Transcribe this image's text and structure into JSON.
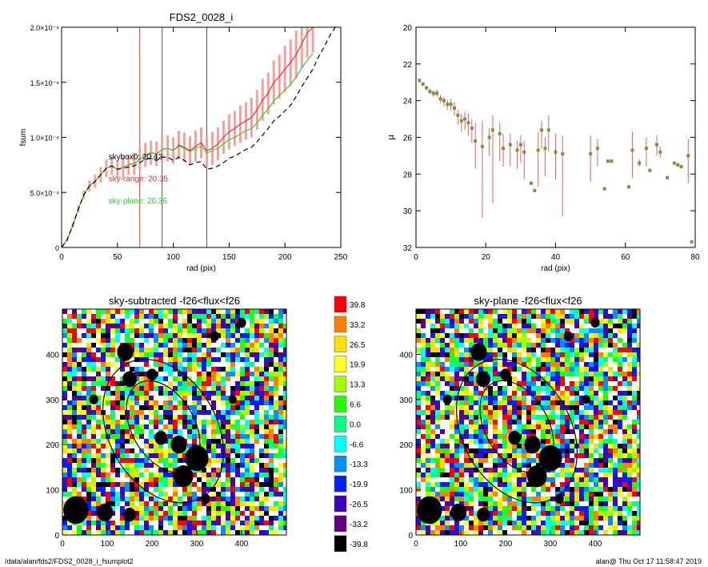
{
  "footer": {
    "path": "/data/alan/fds2/FDS2_0028_i_fsumplot2",
    "user_time": "alan@  Thu Oct 17 11:58:47 2019"
  },
  "chart_data": [
    {
      "type": "line",
      "title": "FDS2_0028_i",
      "xlabel": "rad (pix)",
      "ylabel": "fsum",
      "xlim": [
        0,
        250
      ],
      "ylim": [
        0,
        2e-08
      ],
      "xticks": [
        "0",
        "50",
        "100",
        "150",
        "200",
        "250"
      ],
      "yticks": [
        {
          "value": 0,
          "label": "0"
        },
        {
          "value": 5e-09,
          "label": "5.0×10⁻⁹"
        },
        {
          "value": 1e-08,
          "label": "1.0×10⁻⁸"
        },
        {
          "value": 1.5e-08,
          "label": "1.5×10⁻⁸"
        },
        {
          "value": 2e-08,
          "label": "2.0×10⁻⁸"
        }
      ],
      "vlines": [
        {
          "x": 70,
          "color": "#e83030"
        },
        {
          "x": 90,
          "color": "#555555"
        },
        {
          "x": 130,
          "color": "#555555"
        }
      ],
      "annotations": [
        {
          "text": "skybox0: 20.42",
          "color": "#000000",
          "x": 42,
          "y": 8e-09
        },
        {
          "text": "sky-range: 20.35",
          "color": "#e83030",
          "x": 42,
          "y": 6e-09
        },
        {
          "text": "sky-plane: 20.36",
          "color": "#22dd22",
          "x": 42,
          "y": 4e-09
        }
      ],
      "series": [
        {
          "color": "#e83030",
          "x": [
            0,
            5,
            10,
            15,
            20,
            25,
            30,
            35,
            40,
            45,
            50,
            55,
            60,
            65,
            70,
            75,
            80,
            85,
            90,
            95,
            100,
            105,
            110,
            115,
            120,
            125,
            130,
            135,
            140,
            145,
            150,
            155,
            160,
            165,
            170,
            175,
            180,
            185,
            190,
            195,
            200,
            205,
            210,
            215,
            220,
            225
          ],
          "y": [
            0,
            7e-10,
            2e-09,
            3.5e-09,
            4.8e-09,
            5.6e-09,
            6e-09,
            6.6e-09,
            7.2e-09,
            7.4e-09,
            7.1e-09,
            7.3e-09,
            7.5e-09,
            7.6e-09,
            8e-09,
            8.4e-09,
            8.6e-09,
            8.5e-09,
            8.9e-09,
            9e-09,
            8.8e-09,
            9.3e-09,
            9.1e-09,
            8.8e-09,
            9.2e-09,
            9.5e-09,
            8.8e-09,
            9e-09,
            9.4e-09,
            1e-08,
            1.05e-08,
            1.08e-08,
            1.12e-08,
            1.15e-08,
            1.18e-08,
            1.25e-08,
            1.34e-08,
            1.4e-08,
            1.5e-08,
            1.55e-08,
            1.62e-08,
            1.68e-08,
            1.75e-08,
            1.85e-08,
            1.95e-08,
            2e-08
          ],
          "err": [
            0,
            1e-10,
            2e-10,
            3e-10,
            4e-10,
            5e-10,
            6e-10,
            7e-10,
            8e-10,
            8e-10,
            8e-10,
            9e-10,
            9e-10,
            1e-09,
            1e-09,
            1.1e-09,
            1.1e-09,
            1.1e-09,
            1.2e-09,
            1.2e-09,
            1.2e-09,
            1.3e-09,
            1.3e-09,
            1.3e-09,
            1.4e-09,
            1.4e-09,
            1.4e-09,
            1.5e-09,
            1.5e-09,
            1.5e-09,
            1.6e-09,
            1.6e-09,
            1.7e-09,
            1.7e-09,
            1.8e-09,
            1.8e-09,
            1.9e-09,
            1.9e-09,
            2e-09,
            2e-09,
            2.1e-09,
            2.1e-09,
            2.2e-09,
            2.2e-09,
            2.3e-09,
            2.3e-09
          ]
        },
        {
          "color": "#22dd22",
          "x": [
            0,
            5,
            10,
            15,
            20,
            25,
            30,
            35,
            40,
            45,
            50,
            55,
            60,
            65,
            70,
            75,
            80,
            85,
            90,
            95,
            100,
            105,
            110,
            115,
            120,
            125,
            130,
            135,
            140,
            145,
            150,
            155,
            160,
            165,
            170,
            175,
            180,
            185,
            190,
            195,
            200,
            205,
            210,
            215,
            220,
            225
          ],
          "y": [
            0,
            7e-10,
            2e-09,
            3.5e-09,
            4.8e-09,
            5.6e-09,
            6e-09,
            6.6e-09,
            7.2e-09,
            7.4e-09,
            7.1e-09,
            7.3e-09,
            7.5e-09,
            7.6e-09,
            8e-09,
            8.4e-09,
            8.6e-09,
            8.5e-09,
            8.9e-09,
            9e-09,
            8.8e-09,
            9.2e-09,
            9e-09,
            8.7e-09,
            9e-09,
            9.2e-09,
            8.6e-09,
            8.8e-09,
            9e-09,
            9.4e-09,
            9.8e-09,
            1e-08,
            1.03e-08,
            1.06e-08,
            1.08e-08,
            1.13e-08,
            1.2e-08,
            1.26e-08,
            1.33e-08,
            1.38e-08,
            1.43e-08,
            1.48e-08,
            1.55e-08,
            1.63e-08,
            1.7e-08,
            1.76e-08
          ]
        },
        {
          "color": "#000000",
          "dashed": true,
          "x": [
            0,
            5,
            10,
            15,
            20,
            25,
            30,
            35,
            40,
            45,
            50,
            55,
            60,
            65,
            70,
            75,
            80,
            85,
            90,
            95,
            100,
            105,
            110,
            115,
            120,
            125,
            130,
            135,
            140,
            145,
            150,
            155,
            160,
            165,
            170,
            175,
            180,
            185,
            190,
            195,
            200,
            205,
            210,
            215,
            220,
            225,
            230,
            235,
            240,
            245
          ],
          "y": [
            0,
            7e-10,
            2e-09,
            3.5e-09,
            4.8e-09,
            5.6e-09,
            6e-09,
            6.6e-09,
            7.2e-09,
            7.4e-09,
            7.1e-09,
            7.2e-09,
            7.3e-09,
            7.4e-09,
            7.7e-09,
            8e-09,
            8.1e-09,
            7.9e-09,
            8.2e-09,
            8.2e-09,
            7.9e-09,
            8.2e-09,
            7.9e-09,
            7.5e-09,
            7.7e-09,
            7.8e-09,
            7.1e-09,
            7.2e-09,
            7.4e-09,
            7.7e-09,
            8.1e-09,
            8.3e-09,
            8.6e-09,
            8.9e-09,
            9.1e-09,
            9.6e-09,
            1.02e-08,
            1.08e-08,
            1.15e-08,
            1.19e-08,
            1.24e-08,
            1.29e-08,
            1.37e-08,
            1.46e-08,
            1.54e-08,
            1.62e-08,
            1.73e-08,
            1.82e-08,
            1.92e-08,
            2e-08
          ]
        }
      ]
    },
    {
      "type": "scatter",
      "xlabel": "rad (pix)",
      "ylabel": "μ",
      "xlim": [
        0,
        80
      ],
      "ylim": [
        32,
        20
      ],
      "xticks": [
        "0",
        "20",
        "40",
        "60",
        "80"
      ],
      "yticks": [
        "20",
        "22",
        "24",
        "26",
        "28",
        "30",
        "32"
      ],
      "points": [
        {
          "x": 1,
          "y": 22.9,
          "lo": 0.1,
          "hi": 0.1
        },
        {
          "x": 2,
          "y": 23.1,
          "lo": 0.1,
          "hi": 0.1
        },
        {
          "x": 3,
          "y": 23.3,
          "lo": 0.1,
          "hi": 0.15
        },
        {
          "x": 4,
          "y": 23.5,
          "lo": 0.15,
          "hi": 0.15
        },
        {
          "x": 5,
          "y": 23.6,
          "lo": 0.15,
          "hi": 0.2
        },
        {
          "x": 6,
          "y": 23.6,
          "lo": 0.2,
          "hi": 0.2
        },
        {
          "x": 7,
          "y": 23.9,
          "lo": 0.2,
          "hi": 0.25
        },
        {
          "x": 8,
          "y": 24.0,
          "lo": 0.2,
          "hi": 0.3
        },
        {
          "x": 9,
          "y": 24.2,
          "lo": 0.25,
          "hi": 0.3
        },
        {
          "x": 10,
          "y": 24.2,
          "lo": 0.3,
          "hi": 0.35
        },
        {
          "x": 11,
          "y": 24.4,
          "lo": 0.3,
          "hi": 0.4
        },
        {
          "x": 12,
          "y": 24.8,
          "lo": 0.3,
          "hi": 0.5
        },
        {
          "x": 13,
          "y": 25.1,
          "lo": 0.4,
          "hi": 0.6
        },
        {
          "x": 14,
          "y": 25.0,
          "lo": 0.4,
          "hi": 0.6
        },
        {
          "x": 15,
          "y": 25.2,
          "lo": 0.5,
          "hi": 0.7
        },
        {
          "x": 16,
          "y": 25.5,
          "lo": 0.5,
          "hi": 0.8
        },
        {
          "x": 17,
          "y": 26.2,
          "lo": 1.0,
          "hi": 1.5
        },
        {
          "x": 19,
          "y": 26.5,
          "lo": 1.4,
          "hi": 3.9
        },
        {
          "x": 21,
          "y": 26.0,
          "lo": 0.5,
          "hi": 1.0
        },
        {
          "x": 22,
          "y": 25.6,
          "lo": 0.8,
          "hi": 4.0
        },
        {
          "x": 24,
          "y": 25.8,
          "lo": 0.6,
          "hi": 1.5
        },
        {
          "x": 25,
          "y": 26.6,
          "lo": 0.8,
          "hi": 1.0
        },
        {
          "x": 27,
          "y": 26.4,
          "lo": 0.6,
          "hi": 1.2
        },
        {
          "x": 29,
          "y": 26.7,
          "lo": 0.5,
          "hi": 1.0
        },
        {
          "x": 30,
          "y": 26.4,
          "lo": 0.5,
          "hi": 1.0
        },
        {
          "x": 31,
          "y": 26.8,
          "lo": 0.6,
          "hi": 1.5
        },
        {
          "x": 33,
          "y": 28.5,
          "lo": 0.1,
          "hi": 0.1
        },
        {
          "x": 34,
          "y": 28.9,
          "lo": 0.1,
          "hi": 0.1
        },
        {
          "x": 35,
          "y": 26.7,
          "lo": 1.0,
          "hi": 2.0
        },
        {
          "x": 36,
          "y": 25.6,
          "lo": 0.5,
          "hi": 1.0
        },
        {
          "x": 37,
          "y": 26.6,
          "lo": 0.6,
          "hi": 1.5
        },
        {
          "x": 38,
          "y": 25.6,
          "lo": 0.8,
          "hi": 1.2
        },
        {
          "x": 40,
          "y": 26.8,
          "lo": 1.0,
          "hi": 1.5
        },
        {
          "x": 42,
          "y": 26.9,
          "lo": 1.0,
          "hi": 3.4
        },
        {
          "x": 50,
          "y": 26.9,
          "lo": 1.0,
          "hi": 1.5
        },
        {
          "x": 52,
          "y": 26.6,
          "lo": 0.5,
          "hi": 1.0
        },
        {
          "x": 54,
          "y": 28.8,
          "lo": 0.1,
          "hi": 0.1
        },
        {
          "x": 55,
          "y": 27.3,
          "lo": 0.1,
          "hi": 0.1
        },
        {
          "x": 56,
          "y": 27.3,
          "lo": 0.1,
          "hi": 0.1
        },
        {
          "x": 61,
          "y": 28.7,
          "lo": 0.1,
          "hi": 0.1
        },
        {
          "x": 62,
          "y": 26.7,
          "lo": 1.0,
          "hi": 1.5
        },
        {
          "x": 64,
          "y": 27.4,
          "lo": 0.2,
          "hi": 0.2
        },
        {
          "x": 66,
          "y": 26.6,
          "lo": 0.6,
          "hi": 1.0
        },
        {
          "x": 67,
          "y": 27.8,
          "lo": 0.1,
          "hi": 0.1
        },
        {
          "x": 69,
          "y": 26.4,
          "lo": 0.5,
          "hi": 0.6
        },
        {
          "x": 70,
          "y": 26.8,
          "lo": 0.3,
          "hi": 0.3
        },
        {
          "x": 72,
          "y": 28.2,
          "lo": 0.1,
          "hi": 0.1
        },
        {
          "x": 74,
          "y": 27.4,
          "lo": 0.1,
          "hi": 0.1
        },
        {
          "x": 75,
          "y": 27.5,
          "lo": 0.1,
          "hi": 0.1
        },
        {
          "x": 76,
          "y": 27.6,
          "lo": 0.1,
          "hi": 0.1
        },
        {
          "x": 78,
          "y": 27.0,
          "lo": 0.9,
          "hi": 1.5
        },
        {
          "x": 79,
          "y": 31.7,
          "lo": 0.05,
          "hi": 0.05
        }
      ]
    },
    {
      "type": "heatmap",
      "title": "sky-subtracted -f26<flux<f26",
      "xlim": [
        0,
        500
      ],
      "ylim": [
        0,
        500
      ],
      "xticks": [
        "0",
        "100",
        "200",
        "300",
        "400"
      ],
      "yticks": [
        "0",
        "100",
        "200",
        "300",
        "400"
      ],
      "ellipses": [
        {
          "cx": 225,
          "cy": 230,
          "rx": 120,
          "ry": 170,
          "angle": -30
        },
        {
          "cx": 225,
          "cy": 240,
          "rx": 70,
          "ry": 110,
          "angle": -30
        }
      ],
      "blobs": [
        {
          "x": 30,
          "y": 55,
          "r": 28
        },
        {
          "x": 95,
          "y": 50,
          "r": 18
        },
        {
          "x": 150,
          "y": 45,
          "r": 14
        },
        {
          "x": 270,
          "y": 130,
          "r": 22
        },
        {
          "x": 300,
          "y": 170,
          "r": 26
        },
        {
          "x": 260,
          "y": 200,
          "r": 18
        },
        {
          "x": 220,
          "y": 215,
          "r": 14
        },
        {
          "x": 150,
          "y": 345,
          "r": 16
        },
        {
          "x": 140,
          "y": 405,
          "r": 18
        },
        {
          "x": 200,
          "y": 355,
          "r": 12
        },
        {
          "x": 70,
          "y": 300,
          "r": 10
        },
        {
          "x": 340,
          "y": 440,
          "r": 10
        },
        {
          "x": 400,
          "y": 470,
          "r": 10
        },
        {
          "x": 380,
          "y": 300,
          "r": 9
        },
        {
          "x": 320,
          "y": 80,
          "r": 10
        }
      ]
    },
    {
      "type": "heatmap",
      "title": "sky-plane -f26<flux<f26",
      "xlim": [
        0,
        500
      ],
      "ylim": [
        0,
        500
      ],
      "xticks": [
        "0",
        "100",
        "200",
        "300",
        "400"
      ],
      "yticks": [
        "0",
        "100",
        "200",
        "300",
        "400"
      ],
      "ellipses": [
        {
          "cx": 225,
          "cy": 230,
          "rx": 120,
          "ry": 170,
          "angle": -30
        },
        {
          "cx": 225,
          "cy": 240,
          "rx": 70,
          "ry": 110,
          "angle": -30
        }
      ],
      "blobs": [
        {
          "x": 30,
          "y": 55,
          "r": 28
        },
        {
          "x": 95,
          "y": 50,
          "r": 18
        },
        {
          "x": 150,
          "y": 45,
          "r": 14
        },
        {
          "x": 270,
          "y": 130,
          "r": 22
        },
        {
          "x": 300,
          "y": 170,
          "r": 26
        },
        {
          "x": 260,
          "y": 200,
          "r": 18
        },
        {
          "x": 220,
          "y": 215,
          "r": 14
        },
        {
          "x": 150,
          "y": 345,
          "r": 16
        },
        {
          "x": 140,
          "y": 405,
          "r": 18
        },
        {
          "x": 200,
          "y": 355,
          "r": 12
        },
        {
          "x": 70,
          "y": 300,
          "r": 10
        },
        {
          "x": 340,
          "y": 440,
          "r": 10
        },
        {
          "x": 400,
          "y": 470,
          "r": 10
        },
        {
          "x": 380,
          "y": 300,
          "r": 9
        },
        {
          "x": 320,
          "y": 80,
          "r": 10
        }
      ]
    },
    {
      "type": "colorbar",
      "entries": [
        {
          "label": "39.8",
          "color": "#ff0000"
        },
        {
          "label": "33.2",
          "color": "#ff7f00"
        },
        {
          "label": "26.5",
          "color": "#ffdf00"
        },
        {
          "label": "19.9",
          "color": "#ffff20"
        },
        {
          "label": "13.3",
          "color": "#9fff00"
        },
        {
          "label": "6.6",
          "color": "#20ff00"
        },
        {
          "label": "0.0",
          "color": "#00ff80"
        },
        {
          "label": "-6.6",
          "color": "#00ffff"
        },
        {
          "label": "-13.3",
          "color": "#0090ff"
        },
        {
          "label": "-19.9",
          "color": "#0020ff"
        },
        {
          "label": "-26.5",
          "color": "#4000c0"
        },
        {
          "label": "-33.2",
          "color": "#600080"
        },
        {
          "label": "-39.8",
          "color": "#000000"
        }
      ]
    }
  ]
}
